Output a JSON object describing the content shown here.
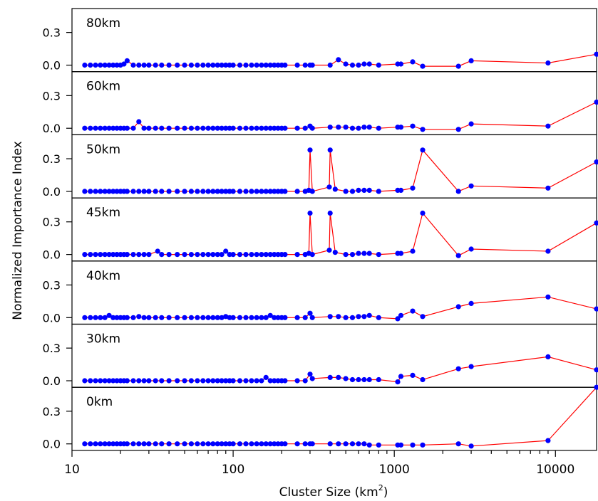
{
  "chart_data": {
    "type": "line",
    "ylabel": "Normalized Importance Index",
    "xlabel_main": "Cluster Size (km",
    "xlabel_sup": "2",
    "xlabel_tail": ")",
    "x_scale": "log",
    "xlim": [
      10,
      18000
    ],
    "ylim": [
      -0.06,
      0.52
    ],
    "x_ticks": [
      10,
      100,
      1000,
      10000
    ],
    "x_tick_labels": [
      "10",
      "100",
      "1000",
      "10000"
    ],
    "y_ticks": [
      0.0,
      0.3
    ],
    "y_tick_labels": [
      "0.0",
      "0.3"
    ],
    "line_color": "#ff0000",
    "marker_color": "#0000ff",
    "grid": false,
    "panels": [
      {
        "label": "80km",
        "x": [
          12,
          13,
          14,
          15,
          16,
          17,
          18,
          19,
          20,
          21,
          22,
          24,
          26,
          28,
          30,
          33,
          36,
          40,
          45,
          50,
          55,
          60,
          65,
          70,
          75,
          80,
          85,
          90,
          95,
          100,
          110,
          120,
          130,
          140,
          150,
          160,
          170,
          180,
          190,
          200,
          210,
          250,
          280,
          300,
          310,
          400,
          450,
          500,
          550,
          600,
          650,
          700,
          800,
          1050,
          1100,
          1300,
          1500,
          2500,
          3000,
          9000,
          18000
        ],
        "y": [
          0,
          0,
          0,
          0,
          0,
          0,
          0,
          0,
          0,
          0.01,
          0.04,
          0,
          0,
          0,
          0,
          0,
          0,
          0,
          0,
          0,
          0,
          0,
          0,
          0,
          0,
          0,
          0,
          0,
          0,
          0,
          0,
          0,
          0,
          0,
          0,
          0,
          0,
          0,
          0,
          0,
          0,
          0,
          0,
          0,
          0,
          0,
          0.05,
          0.01,
          0,
          0,
          0.01,
          0.01,
          0,
          0.01,
          0.01,
          0.03,
          -0.01,
          -0.01,
          0.04,
          0.02,
          0.1
        ]
      },
      {
        "label": "60km",
        "x": [
          12,
          13,
          14,
          15,
          16,
          17,
          18,
          19,
          20,
          21,
          22,
          24,
          26,
          28,
          30,
          33,
          36,
          40,
          45,
          50,
          55,
          60,
          65,
          70,
          75,
          80,
          85,
          90,
          95,
          100,
          110,
          120,
          130,
          140,
          150,
          160,
          170,
          180,
          190,
          200,
          210,
          250,
          280,
          300,
          310,
          400,
          450,
          500,
          550,
          600,
          650,
          700,
          800,
          1050,
          1100,
          1300,
          1500,
          2500,
          3000,
          9000,
          18000
        ],
        "y": [
          0,
          0,
          0,
          0,
          0,
          0,
          0,
          0,
          0,
          0,
          0,
          0,
          0.06,
          0,
          0,
          0,
          0,
          0,
          0,
          0,
          0,
          0,
          0,
          0,
          0,
          0,
          0,
          0,
          0,
          0,
          0,
          0,
          0,
          0,
          0,
          0,
          0,
          0,
          0,
          0,
          0,
          0,
          0,
          0.02,
          0,
          0.01,
          0.01,
          0.01,
          0,
          0,
          0.01,
          0.01,
          0,
          0.01,
          0.01,
          0.02,
          -0.01,
          -0.01,
          0.04,
          0.02,
          0.24
        ]
      },
      {
        "label": "50km",
        "x": [
          12,
          13,
          14,
          15,
          16,
          17,
          18,
          19,
          20,
          21,
          22,
          24,
          26,
          28,
          30,
          33,
          36,
          40,
          45,
          50,
          55,
          60,
          65,
          70,
          75,
          80,
          85,
          90,
          95,
          100,
          110,
          120,
          130,
          140,
          150,
          160,
          170,
          180,
          190,
          200,
          210,
          250,
          280,
          295,
          300,
          310,
          395,
          400,
          430,
          500,
          550,
          600,
          650,
          700,
          800,
          1050,
          1100,
          1300,
          1500,
          2500,
          3000,
          9000,
          18000
        ],
        "y": [
          0,
          0,
          0,
          0,
          0,
          0,
          0,
          0,
          0,
          0,
          0,
          0,
          0,
          0,
          0,
          0,
          0,
          0,
          0,
          0,
          0,
          0,
          0,
          0,
          0,
          0,
          0,
          0,
          0,
          0,
          0,
          0,
          0,
          0,
          0,
          0,
          0,
          0,
          0,
          0,
          0,
          0,
          0,
          0.01,
          0.38,
          0,
          0.04,
          0.38,
          0.02,
          0,
          0,
          0.01,
          0.01,
          0.01,
          0,
          0.01,
          0.01,
          0.03,
          0.38,
          0,
          0.05,
          0.03,
          0.27
        ]
      },
      {
        "label": "45km",
        "x": [
          12,
          13,
          14,
          15,
          16,
          17,
          18,
          19,
          20,
          21,
          22,
          24,
          26,
          28,
          30,
          34,
          36,
          40,
          45,
          50,
          55,
          60,
          65,
          70,
          75,
          80,
          85,
          90,
          95,
          100,
          110,
          120,
          130,
          140,
          150,
          160,
          170,
          180,
          190,
          200,
          210,
          250,
          280,
          295,
          300,
          310,
          395,
          400,
          430,
          500,
          550,
          600,
          650,
          700,
          800,
          1050,
          1100,
          1300,
          1500,
          2500,
          3000,
          9000,
          18000
        ],
        "y": [
          0,
          0,
          0,
          0,
          0,
          0,
          0,
          0,
          0,
          0,
          0,
          0,
          0,
          0,
          0,
          0.03,
          0,
          0,
          0,
          0,
          0,
          0,
          0,
          0,
          0,
          0,
          0,
          0.03,
          0,
          0,
          0,
          0,
          0,
          0,
          0,
          0,
          0,
          0,
          0,
          0,
          0,
          0,
          0,
          0.01,
          0.38,
          0,
          0.04,
          0.38,
          0.02,
          0,
          0,
          0.01,
          0.01,
          0.01,
          0,
          0.01,
          0.01,
          0.03,
          0.38,
          -0.01,
          0.05,
          0.03,
          0.29
        ]
      },
      {
        "label": "40km",
        "x": [
          12,
          13,
          14,
          15,
          16,
          17,
          18,
          19,
          20,
          21,
          22,
          24,
          26,
          28,
          30,
          33,
          36,
          40,
          45,
          50,
          55,
          60,
          65,
          70,
          75,
          80,
          85,
          90,
          95,
          100,
          110,
          120,
          130,
          140,
          150,
          160,
          170,
          180,
          190,
          200,
          210,
          250,
          280,
          300,
          310,
          400,
          450,
          500,
          550,
          600,
          650,
          700,
          800,
          1050,
          1100,
          1300,
          1500,
          2500,
          3000,
          9000,
          18000
        ],
        "y": [
          0,
          0,
          0,
          0,
          0,
          0.02,
          0,
          0,
          0,
          0,
          0,
          0,
          0.01,
          0,
          0,
          0,
          0,
          0,
          0,
          0,
          0,
          0,
          0,
          0,
          0,
          0,
          0,
          0.01,
          0,
          0,
          0,
          0,
          0,
          0,
          0,
          0,
          0.02,
          0,
          0,
          0,
          0,
          0,
          0,
          0.04,
          0,
          0.01,
          0.01,
          0,
          0,
          0.01,
          0.01,
          0.02,
          0,
          -0.01,
          0.02,
          0.06,
          0.01,
          0.1,
          0.13,
          0.19,
          0.08
        ]
      },
      {
        "label": "30km",
        "x": [
          12,
          13,
          14,
          15,
          16,
          17,
          18,
          19,
          20,
          21,
          22,
          24,
          26,
          28,
          30,
          33,
          36,
          40,
          45,
          50,
          55,
          60,
          65,
          70,
          75,
          80,
          85,
          90,
          95,
          100,
          110,
          120,
          130,
          140,
          150,
          160,
          170,
          180,
          190,
          200,
          210,
          250,
          280,
          300,
          310,
          400,
          450,
          500,
          550,
          600,
          650,
          700,
          800,
          1050,
          1100,
          1300,
          1500,
          2500,
          3000,
          9000,
          18000
        ],
        "y": [
          0,
          0,
          0,
          0,
          0,
          0,
          0,
          0,
          0,
          0,
          0,
          0,
          0,
          0,
          0,
          0,
          0,
          0,
          0,
          0,
          0,
          0,
          0,
          0,
          0,
          0,
          0,
          0,
          0,
          0,
          0,
          0,
          0,
          0,
          0,
          0.03,
          0,
          0,
          0,
          0,
          0,
          0,
          0,
          0.06,
          0.02,
          0.03,
          0.03,
          0.02,
          0.01,
          0.01,
          0.01,
          0.01,
          0.01,
          -0.01,
          0.04,
          0.05,
          0.01,
          0.11,
          0.13,
          0.22,
          0.1
        ]
      },
      {
        "label": "0km",
        "x": [
          12,
          13,
          14,
          15,
          16,
          17,
          18,
          19,
          20,
          21,
          22,
          24,
          26,
          28,
          30,
          33,
          36,
          40,
          45,
          50,
          55,
          60,
          65,
          70,
          75,
          80,
          85,
          90,
          95,
          100,
          110,
          120,
          130,
          140,
          150,
          160,
          170,
          180,
          190,
          200,
          210,
          250,
          280,
          300,
          310,
          400,
          450,
          500,
          550,
          600,
          650,
          700,
          800,
          1050,
          1100,
          1300,
          1500,
          2500,
          3000,
          9000,
          18000
        ],
        "y": [
          0,
          0,
          0,
          0,
          0,
          0,
          0,
          0,
          0,
          0,
          0,
          0,
          0,
          0,
          0,
          0,
          0,
          0,
          0,
          0,
          0,
          0,
          0,
          0,
          0,
          0,
          0,
          0,
          0,
          0,
          0,
          0,
          0,
          0,
          0,
          0,
          0,
          0,
          0,
          0,
          0,
          0,
          0,
          0,
          0,
          0,
          0,
          0,
          0,
          0,
          0,
          -0.01,
          -0.01,
          -0.01,
          -0.01,
          -0.01,
          -0.01,
          0,
          -0.02,
          0.03,
          0.52
        ]
      }
    ]
  }
}
